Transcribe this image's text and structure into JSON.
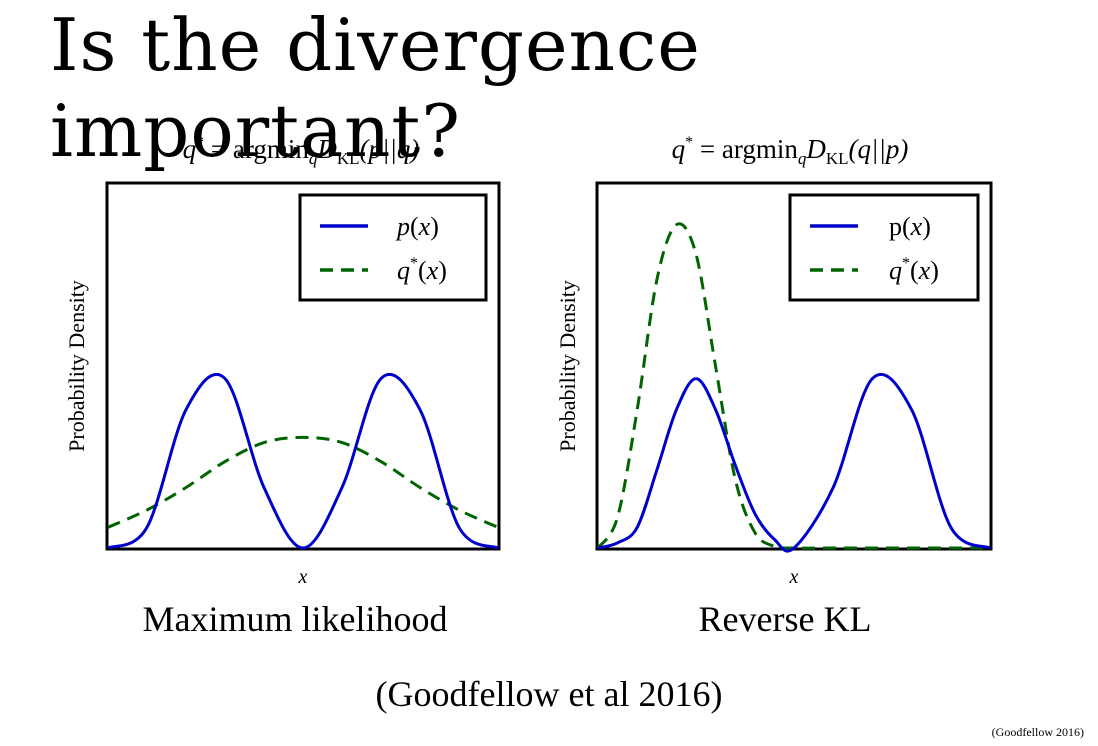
{
  "slide": {
    "title": "Is the divergence important?",
    "citation": "(Goodfellow et al 2016)",
    "footer_note": "(Goodfellow 2016)"
  },
  "colors": {
    "p_line": "#0000cc",
    "q_line": "#006400",
    "frame": "#000000"
  },
  "chart_data": [
    {
      "type": "line",
      "title": "q* = argmin_q D_KL(p||q)",
      "title_parts": {
        "lhs": "q",
        "star": "*",
        "eq": " = argmin",
        "sub_q": "q",
        "D": "D",
        "sub_KL": "KL",
        "args": "(p||q)"
      },
      "caption": "Maximum likelihood",
      "xlabel": "x",
      "ylabel": "Probability Density",
      "x": [
        0,
        10,
        20,
        30,
        40,
        50,
        60,
        70,
        80,
        90,
        100
      ],
      "series": [
        {
          "name": "p(x)",
          "style": "solid",
          "values": [
            0.0,
            0.12,
            0.8,
            0.98,
            0.35,
            0.0,
            0.35,
            0.98,
            0.8,
            0.12,
            0.0
          ]
        },
        {
          "name": "q*(x)",
          "style": "dashed",
          "values": [
            0.12,
            0.22,
            0.35,
            0.5,
            0.61,
            0.64,
            0.61,
            0.5,
            0.35,
            0.22,
            0.12
          ]
        }
      ],
      "legend_entries": [
        {
          "label": "p(x)",
          "label_parts": {
            "a": "p(",
            "b": "x",
            "c": ")"
          }
        },
        {
          "label": "q*(x)",
          "label_parts": {
            "a": "q",
            "star": "*",
            "b": "(",
            "c": "x",
            "d": ")"
          }
        }
      ],
      "legend_position": "top-right",
      "grid": false,
      "ylim": [
        0,
        2.1
      ]
    },
    {
      "type": "line",
      "title": "q* = argmin_q D_KL(q||p)",
      "title_parts": {
        "lhs": "q",
        "star": "*",
        "eq": " = argmin",
        "sub_q": "q",
        "D": "D",
        "sub_KL": "KL",
        "args": "(q||p)"
      },
      "caption": "Reverse KL",
      "xlabel": "x",
      "ylabel": "Probability Density",
      "x": [
        0,
        5,
        10,
        15,
        20,
        25,
        30,
        35,
        40,
        45,
        50,
        60,
        70,
        80,
        90,
        100
      ],
      "series": [
        {
          "name": "p(x)",
          "style": "solid",
          "values": [
            0.0,
            0.03,
            0.12,
            0.45,
            0.8,
            0.98,
            0.8,
            0.48,
            0.2,
            0.05,
            0.0,
            0.35,
            0.98,
            0.8,
            0.12,
            0.0
          ]
        },
        {
          "name": "q*(x)",
          "style": "dashed",
          "values": [
            0.0,
            0.18,
            0.8,
            1.55,
            1.87,
            1.7,
            1.05,
            0.4,
            0.09,
            0.01,
            0.0,
            0.0,
            0.0,
            0.0,
            0.0,
            0.0
          ]
        }
      ],
      "legend_entries": [
        {
          "label": "p(x)",
          "label_parts": {
            "a": "p(",
            "b": "x",
            "c": ")"
          }
        },
        {
          "label": "q*(x)",
          "label_parts": {
            "a": "q",
            "star": "*",
            "b": "(",
            "c": "x",
            "d": ")"
          }
        }
      ],
      "legend_position": "top-right",
      "grid": false,
      "ylim": [
        0,
        2.1
      ]
    }
  ]
}
